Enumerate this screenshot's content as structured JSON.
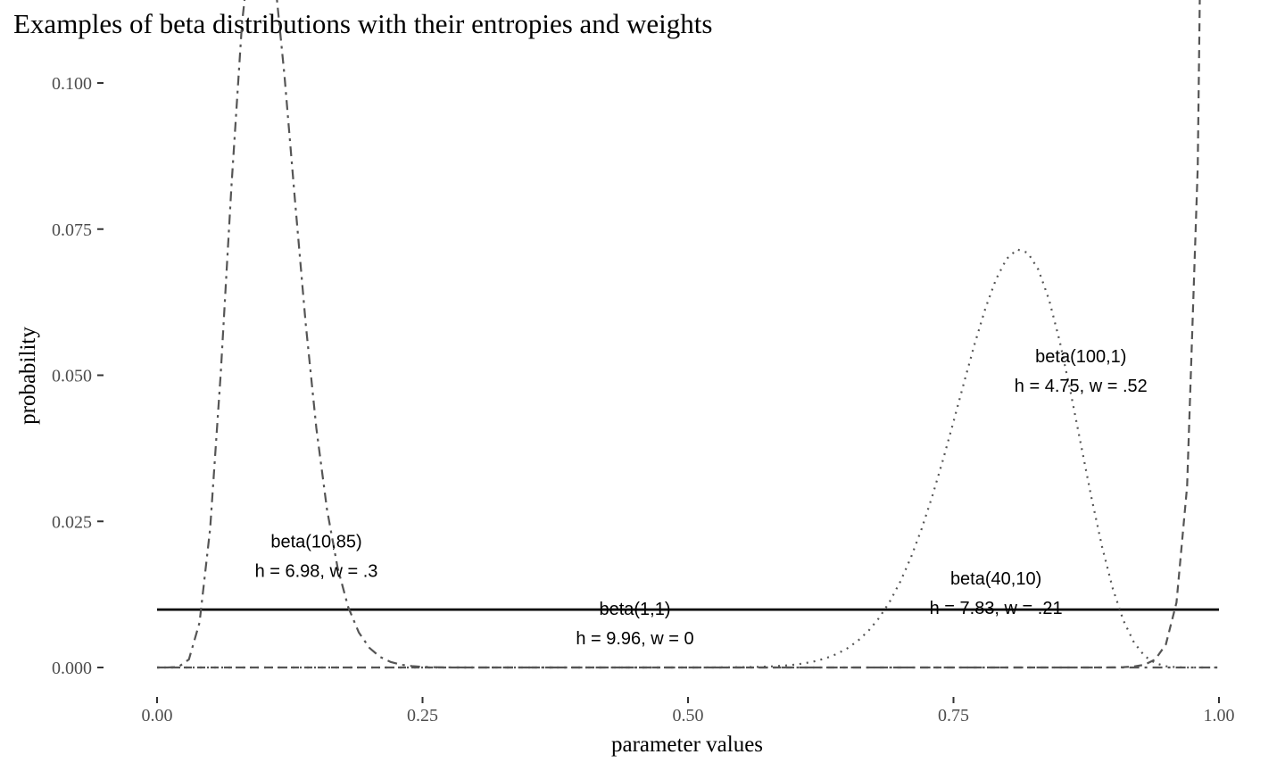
{
  "chart_data": {
    "type": "line",
    "title": "Examples of beta distributions with their entropies and weights",
    "xlabel": "parameter values",
    "ylabel": "probability",
    "xlim": [
      0,
      1
    ],
    "ylim": [
      0,
      0.1
    ],
    "x_ticks": [
      {
        "value": 0,
        "label": "0.00"
      },
      {
        "value": 0.25,
        "label": "0.25"
      },
      {
        "value": 0.5,
        "label": "0.50"
      },
      {
        "value": 0.75,
        "label": "0.75"
      },
      {
        "value": 1,
        "label": "1.00"
      }
    ],
    "y_ticks": [
      {
        "value": 0,
        "label": "0.000"
      },
      {
        "value": 0.025,
        "label": "0.025"
      },
      {
        "value": 0.05,
        "label": "0.050"
      },
      {
        "value": 0.075,
        "label": "0.075"
      },
      {
        "value": 0.1,
        "label": "0.100"
      }
    ],
    "grid": false,
    "grid_points": 101,
    "series": [
      {
        "a": 1,
        "b": 1,
        "linetype": "solid",
        "color": "#000000"
      },
      {
        "a": 10,
        "b": 85,
        "linetype": "dashdot",
        "color": "#555555"
      },
      {
        "a": 40,
        "b": 10,
        "linetype": "dotted",
        "color": "#555555"
      },
      {
        "a": 100,
        "b": 1,
        "linetype": "dashed",
        "color": "#555555"
      }
    ],
    "annotations": [
      {
        "x": 0.15,
        "y": 0.0205,
        "lines": [
          "beta(10,85)",
          "h = 6.98, w = .3"
        ]
      },
      {
        "x": 0.45,
        "y": 0.009,
        "lines": [
          "beta(1,1)",
          "h = 9.96, w = 0"
        ]
      },
      {
        "x": 0.79,
        "y": 0.0142,
        "lines": [
          "beta(40,10)",
          "h = 7.83, w = .21"
        ]
      },
      {
        "x": 0.87,
        "y": 0.0522,
        "lines": [
          "beta(100,1)",
          "h = 4.75, w = .52"
        ]
      }
    ]
  }
}
